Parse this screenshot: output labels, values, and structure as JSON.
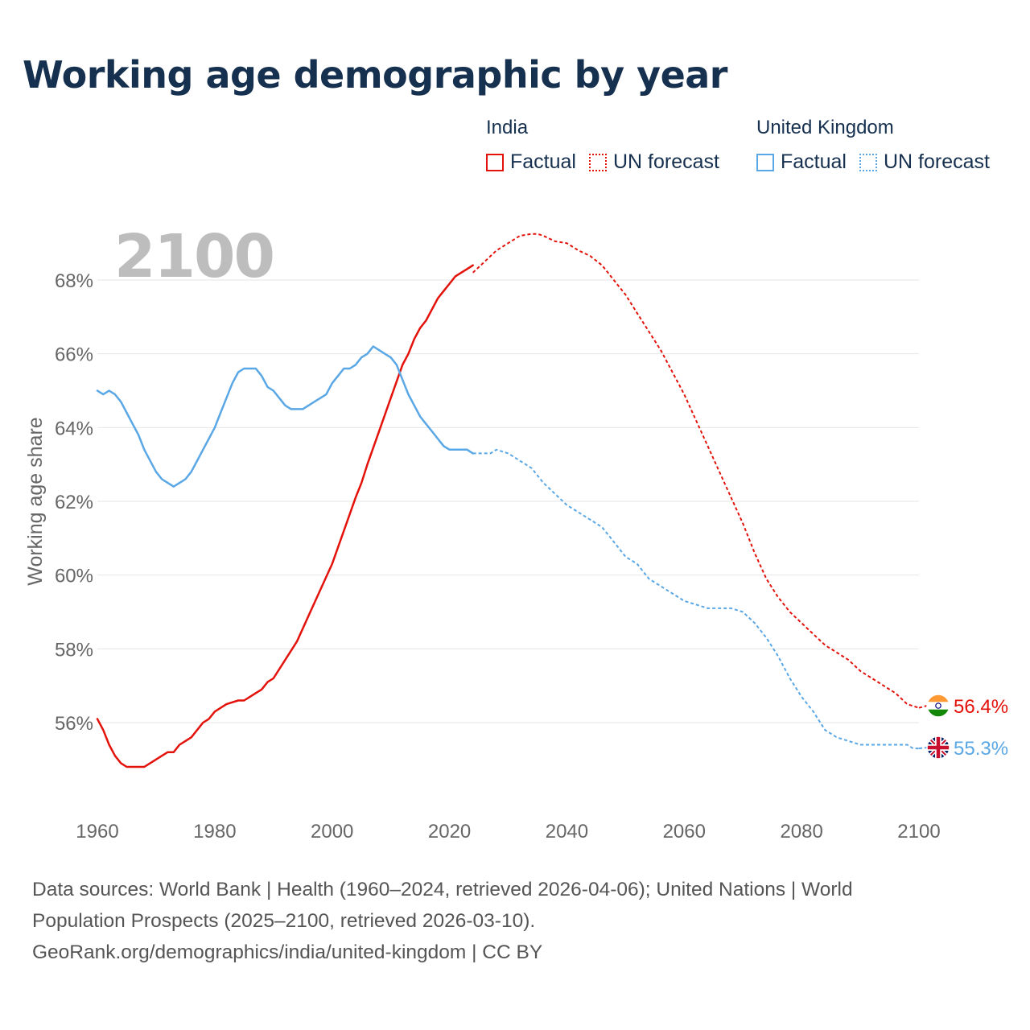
{
  "title": "Working age demographic by year",
  "year_overlay": "2100",
  "legend": {
    "groups": [
      {
        "name": "India",
        "factual": "Factual",
        "forecast": "UN forecast",
        "color": "#e3120b"
      },
      {
        "name": "United Kingdom",
        "factual": "Factual",
        "forecast": "UN forecast",
        "color": "#5aa7e6"
      }
    ]
  },
  "chart_data": {
    "type": "line",
    "title": "Working age demographic by year",
    "xlabel": "",
    "ylabel": "Working age share",
    "xlim": [
      1960,
      2100
    ],
    "ylim": [
      54,
      69.5
    ],
    "x_ticks": [
      1960,
      1980,
      2000,
      2020,
      2040,
      2060,
      2080,
      2100
    ],
    "x_tick_labels": [
      "1960",
      "1980",
      "2000",
      "2020",
      "2040",
      "2060",
      "2080",
      "2100"
    ],
    "y_ticks": [
      56,
      58,
      60,
      62,
      64,
      66,
      68
    ],
    "y_tick_labels": [
      "56%",
      "58%",
      "60%",
      "62%",
      "64%",
      "66%",
      "68%"
    ],
    "grid": true,
    "series": [
      {
        "name": "India",
        "color": "#e3120b",
        "end_label": "56.4%",
        "factual": {
          "label": "Factual",
          "x": [
            1960,
            1961,
            1962,
            1963,
            1964,
            1965,
            1966,
            1967,
            1968,
            1969,
            1970,
            1971,
            1972,
            1973,
            1974,
            1975,
            1976,
            1977,
            1978,
            1979,
            1980,
            1982,
            1984,
            1985,
            1986,
            1987,
            1988,
            1989,
            1990,
            1992,
            1994,
            1996,
            1998,
            2000,
            2002,
            2004,
            2005,
            2006,
            2008,
            2010,
            2012,
            2013,
            2014,
            2015,
            2016,
            2017,
            2018,
            2019,
            2020,
            2021,
            2022,
            2023,
            2024
          ],
          "y": [
            56.1,
            55.8,
            55.4,
            55.1,
            54.9,
            54.8,
            54.8,
            54.8,
            54.8,
            54.9,
            55.0,
            55.1,
            55.2,
            55.2,
            55.4,
            55.5,
            55.6,
            55.8,
            56.0,
            56.1,
            56.3,
            56.5,
            56.6,
            56.6,
            56.7,
            56.8,
            56.9,
            57.1,
            57.2,
            57.7,
            58.2,
            58.9,
            59.6,
            60.3,
            61.2,
            62.1,
            62.5,
            63.0,
            63.9,
            64.8,
            65.7,
            66.0,
            66.4,
            66.7,
            66.9,
            67.2,
            67.5,
            67.7,
            67.9,
            68.1,
            68.2,
            68.3,
            68.4
          ]
        },
        "forecast": {
          "label": "UN forecast",
          "x": [
            2024,
            2026,
            2028,
            2030,
            2032,
            2034,
            2035,
            2036,
            2038,
            2040,
            2042,
            2044,
            2046,
            2048,
            2050,
            2052,
            2054,
            2056,
            2058,
            2060,
            2062,
            2064,
            2066,
            2068,
            2070,
            2072,
            2074,
            2076,
            2078,
            2080,
            2082,
            2084,
            2086,
            2088,
            2090,
            2092,
            2094,
            2096,
            2098,
            2100
          ],
          "y": [
            68.2,
            68.5,
            68.8,
            69.0,
            69.2,
            69.25,
            69.25,
            69.2,
            69.05,
            69.0,
            68.8,
            68.65,
            68.4,
            68.0,
            67.6,
            67.1,
            66.6,
            66.1,
            65.5,
            64.9,
            64.2,
            63.5,
            62.8,
            62.1,
            61.4,
            60.6,
            59.9,
            59.4,
            59.0,
            58.7,
            58.4,
            58.1,
            57.9,
            57.7,
            57.4,
            57.2,
            57.0,
            56.8,
            56.5,
            56.4
          ]
        }
      },
      {
        "name": "United Kingdom",
        "color": "#5aa7e6",
        "end_label": "55.3%",
        "factual": {
          "label": "Factual",
          "x": [
            1960,
            1961,
            1962,
            1963,
            1964,
            1965,
            1966,
            1967,
            1968,
            1969,
            1970,
            1971,
            1972,
            1973,
            1974,
            1975,
            1976,
            1977,
            1978,
            1979,
            1980,
            1981,
            1982,
            1983,
            1984,
            1985,
            1986,
            1987,
            1988,
            1989,
            1990,
            1991,
            1992,
            1993,
            1994,
            1995,
            1996,
            1997,
            1998,
            1999,
            2000,
            2001,
            2002,
            2003,
            2004,
            2005,
            2006,
            2007,
            2008,
            2009,
            2010,
            2011,
            2012,
            2013,
            2014,
            2015,
            2016,
            2017,
            2018,
            2019,
            2020,
            2021,
            2022,
            2023,
            2024
          ],
          "y": [
            65.0,
            64.9,
            65.0,
            64.9,
            64.7,
            64.4,
            64.1,
            63.8,
            63.4,
            63.1,
            62.8,
            62.6,
            62.5,
            62.4,
            62.5,
            62.6,
            62.8,
            63.1,
            63.4,
            63.7,
            64.0,
            64.4,
            64.8,
            65.2,
            65.5,
            65.6,
            65.6,
            65.6,
            65.4,
            65.1,
            65.0,
            64.8,
            64.6,
            64.5,
            64.5,
            64.5,
            64.6,
            64.7,
            64.8,
            64.9,
            65.2,
            65.4,
            65.6,
            65.6,
            65.7,
            65.9,
            66.0,
            66.2,
            66.1,
            66.0,
            65.9,
            65.7,
            65.3,
            64.9,
            64.6,
            64.3,
            64.1,
            63.9,
            63.7,
            63.5,
            63.4,
            63.4,
            63.4,
            63.4,
            63.3
          ]
        },
        "forecast": {
          "label": "UN forecast",
          "x": [
            2024,
            2026,
            2027,
            2028,
            2030,
            2032,
            2034,
            2036,
            2038,
            2040,
            2042,
            2044,
            2046,
            2048,
            2050,
            2052,
            2054,
            2056,
            2058,
            2060,
            2062,
            2064,
            2066,
            2068,
            2070,
            2072,
            2074,
            2076,
            2078,
            2080,
            2082,
            2084,
            2086,
            2088,
            2090,
            2092,
            2094,
            2096,
            2098,
            2099,
            2100
          ],
          "y": [
            63.3,
            63.3,
            63.3,
            63.4,
            63.3,
            63.1,
            62.9,
            62.5,
            62.2,
            61.9,
            61.7,
            61.5,
            61.3,
            60.9,
            60.5,
            60.3,
            59.9,
            59.7,
            59.5,
            59.3,
            59.2,
            59.1,
            59.1,
            59.1,
            59.0,
            58.7,
            58.3,
            57.8,
            57.2,
            56.7,
            56.3,
            55.8,
            55.6,
            55.5,
            55.4,
            55.4,
            55.4,
            55.4,
            55.4,
            55.3,
            55.3
          ]
        }
      }
    ]
  },
  "sources": {
    "line1": "Data sources: World Bank | Health (1960–2024, retrieved 2026-04-06); United Nations | World",
    "line2": "Population Prospects (2025–2100, retrieved 2026-03-10).",
    "line3": "GeoRank.org/demographics/india/united-kingdom | CC BY"
  }
}
